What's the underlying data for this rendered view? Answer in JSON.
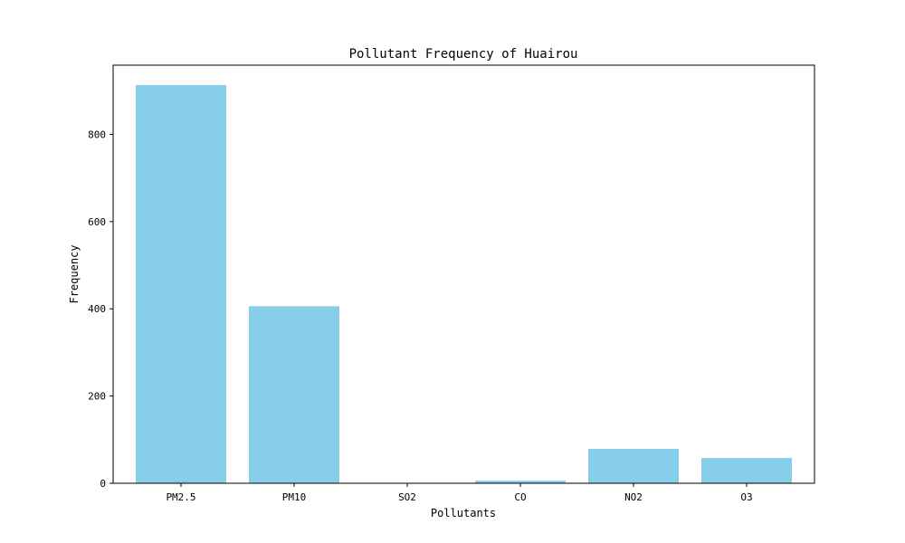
{
  "chart_data": {
    "type": "bar",
    "title": "Pollutant Frequency of Huairou",
    "xlabel": "Pollutants",
    "ylabel": "Frequency",
    "categories": [
      "PM2.5",
      "PM10",
      "SO2",
      "CO",
      "NO2",
      "O3"
    ],
    "values": [
      913,
      406,
      0,
      6,
      79,
      58
    ],
    "ylim": [
      0,
      913
    ],
    "yticks": [
      0,
      200,
      400,
      600,
      800
    ],
    "grid": false,
    "bar_color": "#87ceeb"
  }
}
